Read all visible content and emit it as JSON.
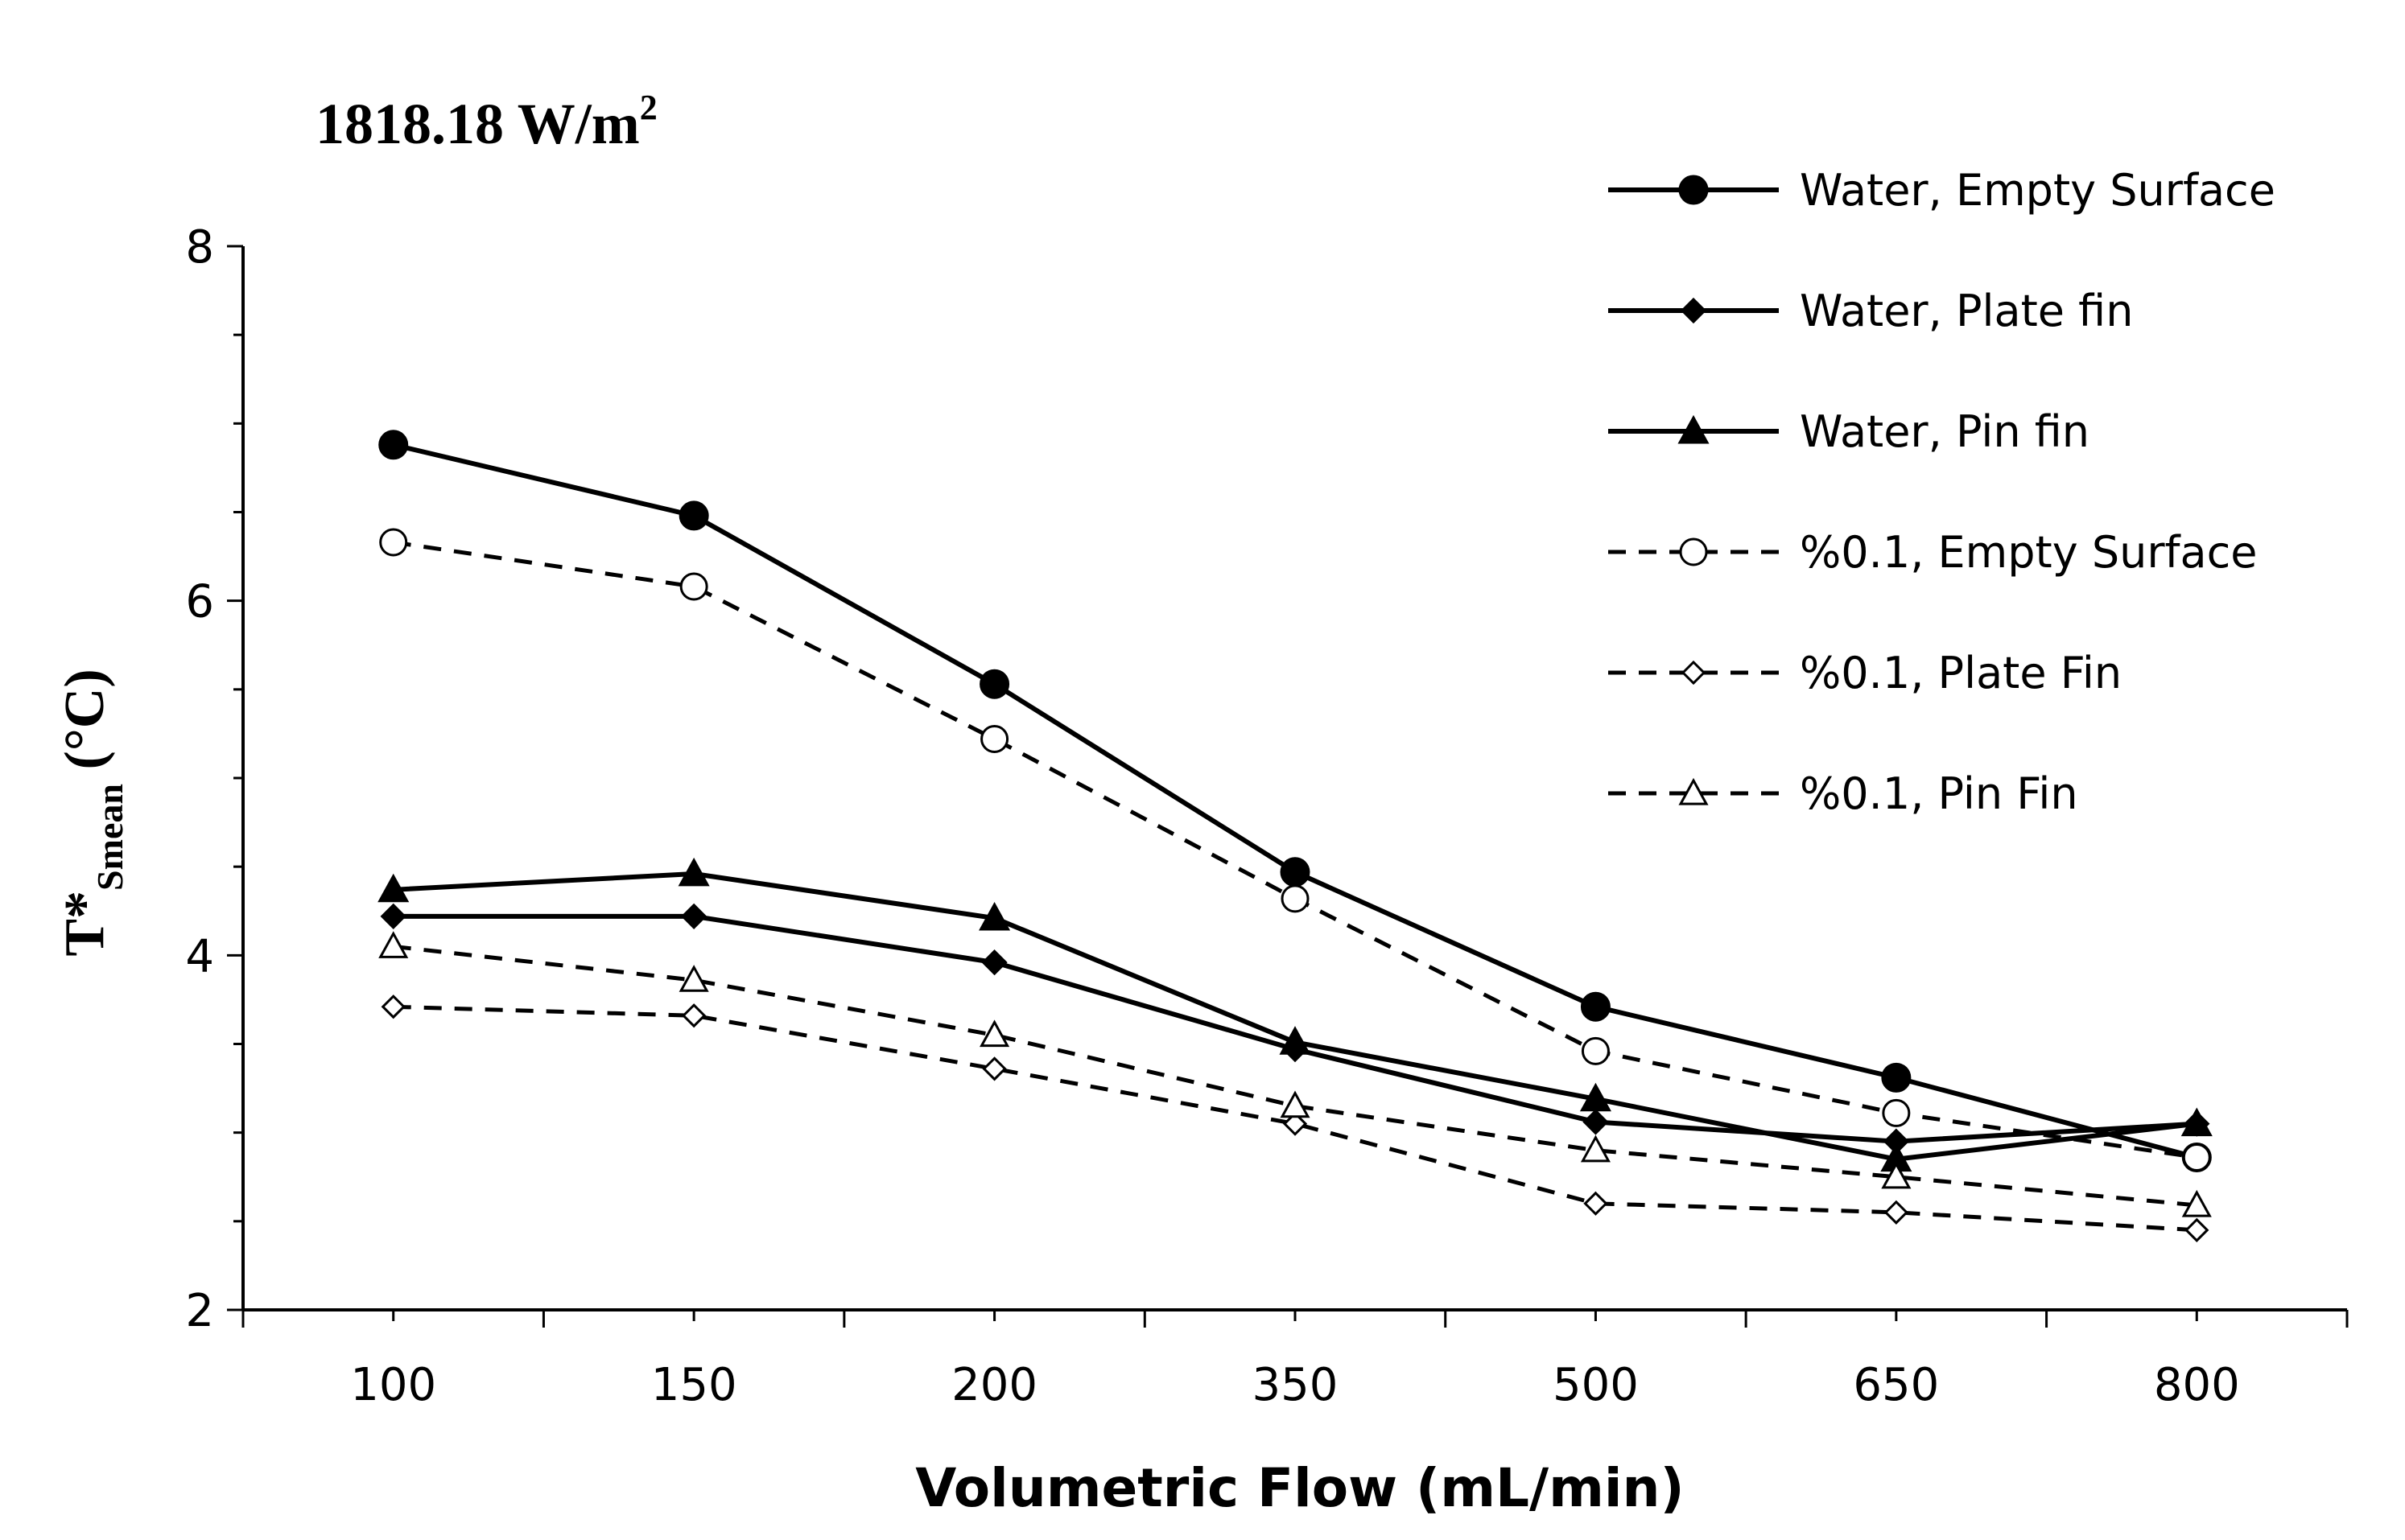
{
  "chart_data": {
    "type": "line",
    "title": "1818.18 W/m",
    "title_superscript": "2",
    "xlabel": "Volumetric Flow (mL/min)",
    "ylabel_main": "T*",
    "ylabel_sub": "Smean",
    "ylabel_unit": " (°C)",
    "categories": [
      "100",
      "150",
      "200",
      "350",
      "500",
      "650",
      "800"
    ],
    "ylim": [
      2,
      8
    ],
    "yticks": [
      2,
      4,
      6,
      8
    ],
    "ytick_labels": [
      "2",
      "4",
      "6",
      "8"
    ],
    "legend_position": "top-right",
    "series": [
      {
        "name": "Water, Empty Surface",
        "marker": "circle",
        "fill": "solid",
        "dash": "solid",
        "values": [
          6.88,
          6.48,
          5.53,
          4.47,
          3.71,
          3.31,
          2.86
        ]
      },
      {
        "name": "Water, Plate fin",
        "marker": "diamond",
        "fill": "solid",
        "dash": "solid",
        "values": [
          4.22,
          4.22,
          3.96,
          3.47,
          3.06,
          2.95,
          3.05
        ]
      },
      {
        "name": "Water, Pin fin",
        "marker": "triangle",
        "fill": "solid",
        "dash": "solid",
        "values": [
          4.37,
          4.46,
          4.21,
          3.51,
          3.19,
          2.85,
          3.05
        ]
      },
      {
        "name": "%0.1, Empty Surface",
        "marker": "circle",
        "fill": "open",
        "dash": "dashed",
        "values": [
          6.33,
          6.08,
          5.22,
          4.32,
          3.46,
          3.11,
          2.86
        ]
      },
      {
        "name": "%0.1, Plate Fin",
        "marker": "diamond",
        "fill": "open",
        "dash": "dashed",
        "values": [
          3.71,
          3.66,
          3.36,
          3.05,
          2.6,
          2.55,
          2.45
        ]
      },
      {
        "name": "%0.1, Pin Fin",
        "marker": "triangle",
        "fill": "open",
        "dash": "dashed",
        "values": [
          4.05,
          3.86,
          3.55,
          3.15,
          2.9,
          2.75,
          2.59
        ]
      }
    ]
  },
  "colors": {
    "line": "#000000",
    "background": "#ffffff"
  }
}
